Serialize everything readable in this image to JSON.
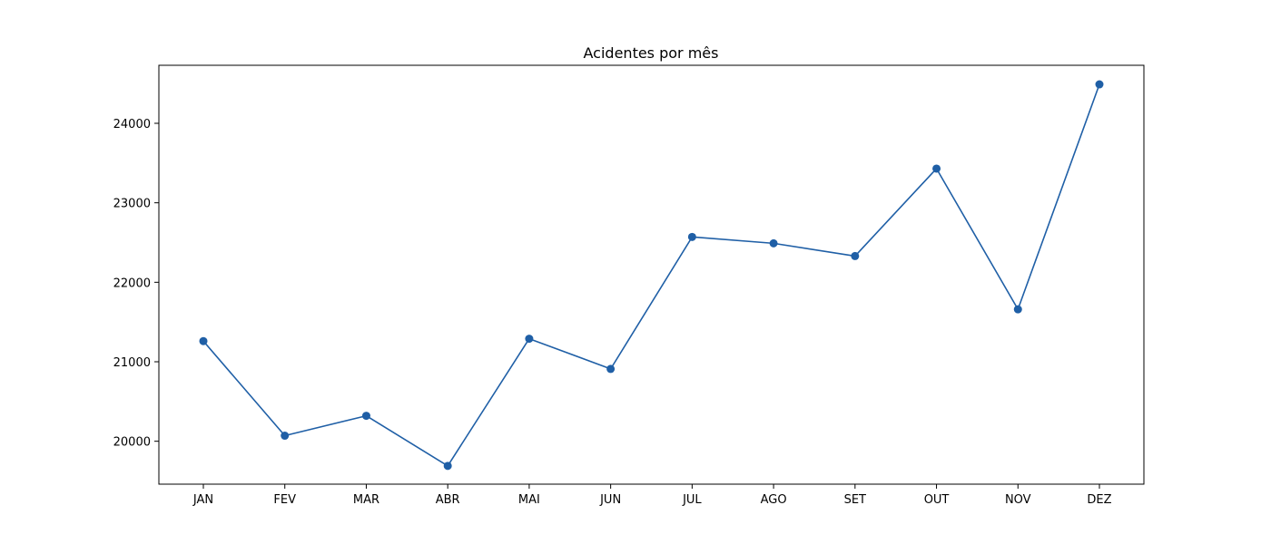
{
  "chart_data": {
    "type": "line",
    "title": "Acidentes por mês",
    "xlabel": "",
    "ylabel": "",
    "categories": [
      "JAN",
      "FEV",
      "MAR",
      "ABR",
      "MAI",
      "JUN",
      "JUL",
      "AGO",
      "SET",
      "OUT",
      "NOV",
      "DEZ"
    ],
    "series": [
      {
        "values": [
          21260,
          20070,
          20320,
          19690,
          21290,
          20910,
          22570,
          22490,
          22330,
          23430,
          21660,
          24490
        ],
        "color": "#1f5fa6",
        "marker": "circle"
      }
    ],
    "ylim": [
      19460,
      24730
    ],
    "yticks": [
      20000,
      21000,
      22000,
      23000,
      24000
    ],
    "grid": false,
    "legend": "none"
  }
}
